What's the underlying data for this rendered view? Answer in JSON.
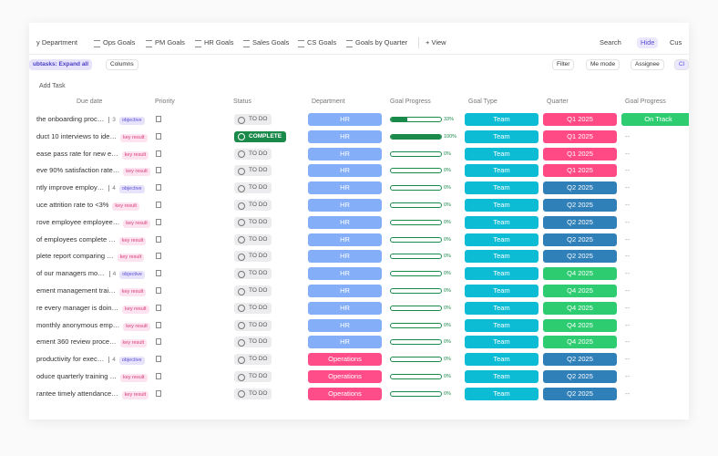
{
  "tabs": [
    "y Department",
    "Ops Goals",
    "PM Goals",
    "HR Goals",
    "Sales Goals",
    "CS Goals",
    "Goals by Quarter",
    "+ View"
  ],
  "right_tools": [
    "Search",
    "Hide",
    "Cus"
  ],
  "toolbar_left": [
    "ubtasks: Expand all",
    "Columns"
  ],
  "toolbar_right": [
    "Filter",
    "Me mode",
    "Assignee",
    "Cl"
  ],
  "add_task": "Add Task",
  "columns": [
    "Due date",
    "Priority",
    "Status",
    "Department",
    "Goal Progress",
    "Goal Type",
    "Quarter",
    "Goal Progress"
  ],
  "rows": [
    {
      "name": "the onboarding proc…",
      "subtasks": "3",
      "tag": "objective",
      "status": "TO DO",
      "department": "HR",
      "progress": "33%",
      "goal_type": "Team",
      "quarter": "Q1 2025",
      "goal_status": "On Track"
    },
    {
      "name": "duct 10 interviews to ide…",
      "tag": "key result",
      "status": "COMPLETE",
      "department": "HR",
      "progress": "100%",
      "goal_type": "Team",
      "quarter": "Q1 2025",
      "goal_status": "--"
    },
    {
      "name": "ease pass rate for new e…",
      "tag": "key result",
      "status": "TO DO",
      "department": "HR",
      "progress": "0%",
      "goal_type": "Team",
      "quarter": "Q1 2025",
      "goal_status": "--"
    },
    {
      "name": "eve 90% satisfaction rate…",
      "tag": "key result",
      "status": "TO DO",
      "department": "HR",
      "progress": "0%",
      "goal_type": "Team",
      "quarter": "Q1 2025",
      "goal_status": "--"
    },
    {
      "name": "ntly improve employ…",
      "subtasks": "4",
      "tag": "objective",
      "status": "TO DO",
      "department": "HR",
      "progress": "0%",
      "goal_type": "Team",
      "quarter": "Q2 2025",
      "goal_status": "--"
    },
    {
      "name": "uce attrition rate to <3%",
      "tag": "key result",
      "status": "TO DO",
      "department": "HR",
      "progress": "0%",
      "goal_type": "Team",
      "quarter": "Q2 2025",
      "goal_status": "--"
    },
    {
      "name": "rove employee employee…",
      "tag": "key result",
      "status": "TO DO",
      "department": "HR",
      "progress": "0%",
      "goal_type": "Team",
      "quarter": "Q2 2025",
      "goal_status": "--"
    },
    {
      "name": "of employees complete …",
      "tag": "key result",
      "status": "TO DO",
      "department": "HR",
      "progress": "0%",
      "goal_type": "Team",
      "quarter": "Q2 2025",
      "goal_status": "--"
    },
    {
      "name": "plete report comparing …",
      "tag": "key result",
      "status": "TO DO",
      "department": "HR",
      "progress": "0%",
      "goal_type": "Team",
      "quarter": "Q2 2025",
      "goal_status": "--"
    },
    {
      "name": "of our managers mo…",
      "subtasks": "4",
      "tag": "objective",
      "status": "TO DO",
      "department": "HR",
      "progress": "0%",
      "goal_type": "Team",
      "quarter": "Q4 2025",
      "goal_status": "--"
    },
    {
      "name": "ement management trai…",
      "tag": "key result",
      "status": "TO DO",
      "department": "HR",
      "progress": "0%",
      "goal_type": "Team",
      "quarter": "Q4 2025",
      "goal_status": "--"
    },
    {
      "name": "re every manager is doin…",
      "tag": "key result",
      "status": "TO DO",
      "department": "HR",
      "progress": "0%",
      "goal_type": "Team",
      "quarter": "Q4 2025",
      "goal_status": "--"
    },
    {
      "name": "monthly anonymous emp…",
      "tag": "key result",
      "status": "TO DO",
      "department": "HR",
      "progress": "0%",
      "goal_type": "Team",
      "quarter": "Q4 2025",
      "goal_status": "--"
    },
    {
      "name": "ement 360 review proce…",
      "tag": "key result",
      "status": "TO DO",
      "department": "HR",
      "progress": "0%",
      "goal_type": "Team",
      "quarter": "Q4 2025",
      "goal_status": "--"
    },
    {
      "name": "productivity for exec…",
      "subtasks": "4",
      "tag": "objective",
      "status": "TO DO",
      "department": "Operations",
      "progress": "0%",
      "goal_type": "Team",
      "quarter": "Q2 2025",
      "goal_status": "--"
    },
    {
      "name": "oduce quarterly training …",
      "tag": "key result",
      "status": "TO DO",
      "department": "Operations",
      "progress": "0%",
      "goal_type": "Team",
      "quarter": "Q2 2025",
      "goal_status": "--"
    },
    {
      "name": "rantee timely attendance…",
      "tag": "key result",
      "status": "TO DO",
      "department": "Operations",
      "progress": "0%",
      "goal_type": "Team",
      "quarter": "Q2 2025",
      "goal_status": "--"
    }
  ]
}
